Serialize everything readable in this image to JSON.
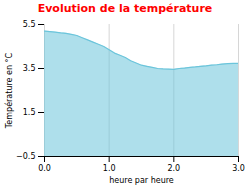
{
  "chart_data": {
    "type": "area",
    "title": "Evolution de la température",
    "xlabel": "heure par heure",
    "ylabel": "Température en °C",
    "x": [
      0.0,
      0.083,
      0.167,
      0.25,
      0.333,
      0.417,
      0.5,
      0.583,
      0.667,
      0.75,
      0.833,
      0.917,
      1.0,
      1.083,
      1.167,
      1.25,
      1.333,
      1.417,
      1.5,
      1.583,
      1.667,
      1.75,
      1.833,
      1.917,
      2.0,
      2.083,
      2.167,
      2.25,
      2.333,
      2.417,
      2.5,
      2.583,
      2.667,
      2.75,
      2.833,
      2.917,
      3.0
    ],
    "values": [
      5.2,
      5.18,
      5.15,
      5.12,
      5.1,
      5.05,
      5.0,
      4.9,
      4.8,
      4.7,
      4.6,
      4.5,
      4.35,
      4.2,
      4.1,
      4.0,
      3.85,
      3.75,
      3.65,
      3.6,
      3.55,
      3.5,
      3.48,
      3.47,
      3.46,
      3.5,
      3.52,
      3.55,
      3.57,
      3.6,
      3.62,
      3.65,
      3.67,
      3.7,
      3.72,
      3.73,
      3.73
    ],
    "color": "#6cc5db",
    "xlim": [
      0,
      3
    ],
    "ylim": [
      -0.5,
      5.5
    ],
    "xticks": [
      0,
      1,
      2,
      3
    ],
    "yticks": [
      -0.5,
      1.5,
      3.5,
      5.5
    ],
    "grid": "x"
  }
}
